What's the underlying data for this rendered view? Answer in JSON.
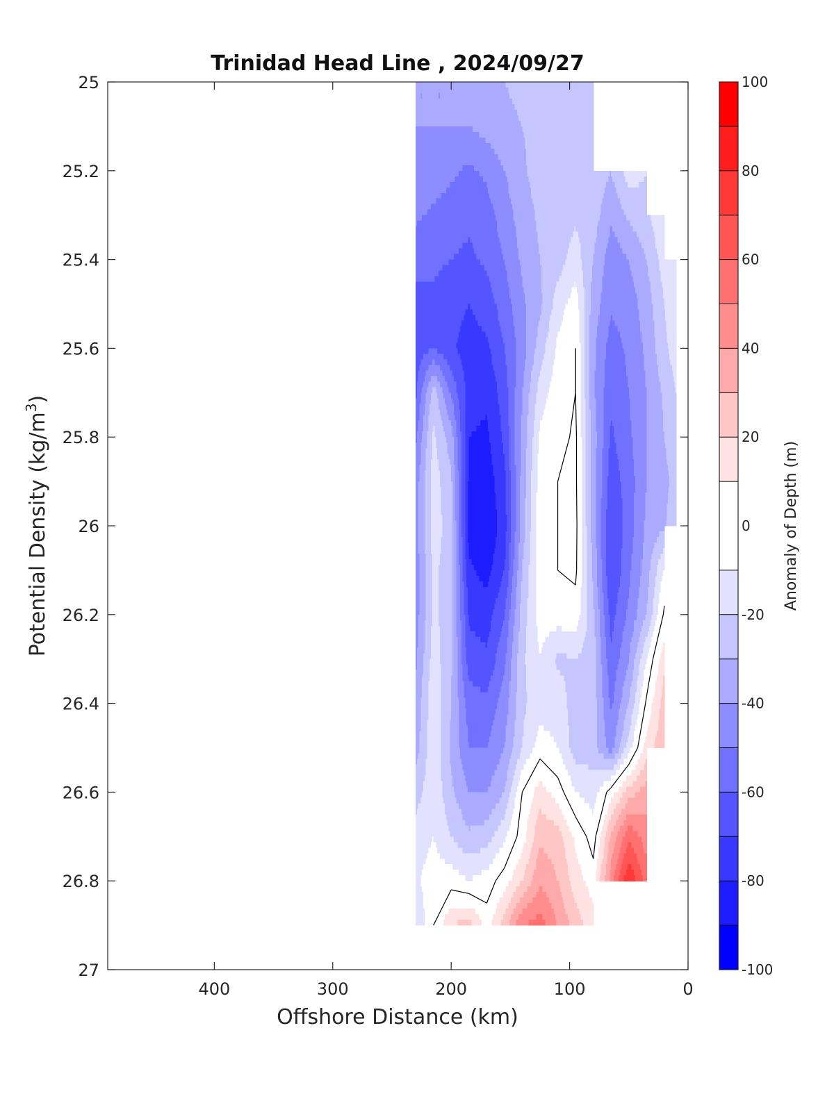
{
  "chart_data": {
    "type": "contour",
    "title": "Trinidad Head Line , 2024/09/27",
    "xlabel": "Offshore Distance (km)",
    "ylabel": "Potential Density (kg/m",
    "ylabel_superscript": "3",
    "ylabel_close": ")",
    "xlim": [
      490,
      0
    ],
    "ylim": [
      25,
      27
    ],
    "x_reversed": true,
    "y_reversed": true,
    "xticks": [
      400,
      300,
      200,
      100,
      0
    ],
    "yticks": [
      25,
      25.2,
      25.4,
      25.6,
      25.8,
      26,
      26.2,
      26.4,
      26.6,
      26.8,
      27
    ],
    "xtick_labels": [
      "400",
      "300",
      "200",
      "100",
      "0"
    ],
    "ytick_labels": [
      "25",
      "25.2",
      "25.4",
      "25.6",
      "25.8",
      "26",
      "26.2",
      "26.4",
      "26.6",
      "26.8",
      "27"
    ],
    "colorbar": {
      "label": "Anomaly of Depth (m)",
      "range": [
        -100,
        100
      ],
      "tick_values": [
        100,
        80,
        60,
        40,
        20,
        0,
        -20,
        -40,
        -60,
        -80,
        -100
      ],
      "tick_labels": [
        "100",
        "80",
        "60",
        "40",
        "20",
        "0",
        "-20",
        "-40",
        "-60",
        "-80",
        "-100"
      ],
      "levels": [
        -100,
        -90,
        -80,
        -70,
        -60,
        -50,
        -40,
        -30,
        -20,
        -10,
        10,
        20,
        30,
        40,
        50,
        60,
        70,
        80,
        90,
        100
      ],
      "colors_low_to_high": [
        "#0000ff",
        "#1c1cff",
        "#3838ff",
        "#5555ff",
        "#7171ff",
        "#8d8dff",
        "#aaaaff",
        "#c6c6ff",
        "#e2e2ff",
        "#ffffff",
        "#ffe2e2",
        "#ffc6c6",
        "#ffaaaa",
        "#ff8d8d",
        "#ff7171",
        "#ff5555",
        "#ff3838",
        "#ff1c1c",
        "#ff0000"
      ]
    },
    "grid": false,
    "distances_km": [
      230,
      215,
      200,
      185,
      170,
      155,
      140,
      125,
      110,
      95,
      80,
      65,
      50,
      35,
      20,
      10
    ],
    "densities": [
      25.0,
      25.1,
      25.2,
      25.3,
      25.4,
      25.5,
      25.6,
      25.7,
      25.8,
      25.9,
      26.0,
      26.1,
      26.2,
      26.3,
      26.4,
      26.5,
      26.6,
      26.7,
      26.8,
      26.9
    ],
    "anomaly_m": [
      [
        -40,
        -40,
        -40,
        -38,
        -35,
        -30,
        -28,
        -25,
        -25,
        -25,
        -25,
        null,
        null,
        null,
        null,
        null
      ],
      [
        -40,
        -40,
        -40,
        -40,
        -36,
        -32,
        -30,
        -25,
        -25,
        -25,
        -25,
        null,
        null,
        null,
        null,
        null
      ],
      [
        -42,
        -44,
        -48,
        -52,
        -48,
        -40,
        -32,
        -25,
        -25,
        -24,
        -22,
        -30,
        -15,
        -20,
        null,
        null
      ],
      [
        -48,
        -52,
        -55,
        -58,
        -54,
        -45,
        -35,
        -28,
        -25,
        -22,
        -25,
        -38,
        -28,
        -22,
        -10,
        null
      ],
      [
        -58,
        -58,
        -60,
        -62,
        -58,
        -50,
        -38,
        -30,
        -25,
        -15,
        -30,
        -46,
        -40,
        -30,
        -15,
        -14
      ],
      [
        -62,
        -62,
        -66,
        -70,
        -65,
        -55,
        -42,
        -32,
        -15,
        -5,
        -35,
        -48,
        -45,
        -35,
        -20,
        -14
      ],
      [
        -65,
        -60,
        -68,
        -75,
        -72,
        -60,
        -45,
        -25,
        -8,
        0,
        -38,
        -55,
        -48,
        -38,
        -22,
        -15
      ],
      [
        -62,
        -25,
        -52,
        -75,
        -78,
        -65,
        -40,
        -15,
        -4,
        0,
        -38,
        -58,
        -50,
        -40,
        -28,
        -20
      ],
      [
        -52,
        -18,
        -35,
        -80,
        -82,
        -68,
        -38,
        -8,
        -4,
        2,
        -35,
        -62,
        -52,
        -40,
        -30,
        -24
      ],
      [
        -45,
        -15,
        -28,
        -82,
        -86,
        -72,
        -36,
        -5,
        0,
        2,
        -35,
        -66,
        -55,
        -40,
        -32,
        -28
      ],
      [
        -45,
        -15,
        -25,
        -84,
        -88,
        -75,
        -35,
        -3,
        0,
        3,
        -35,
        -70,
        -55,
        -38,
        -32,
        -20
      ],
      [
        -45,
        -18,
        -25,
        -78,
        -84,
        -70,
        -30,
        -4,
        0,
        2,
        -32,
        -70,
        -52,
        -35,
        -8,
        null
      ],
      [
        -45,
        -18,
        -25,
        -72,
        -75,
        -60,
        -25,
        -6,
        -5,
        -4,
        -28,
        -64,
        -48,
        -30,
        2,
        null
      ],
      [
        -42,
        -15,
        -28,
        -65,
        -68,
        -52,
        -22,
        -10,
        -22,
        -20,
        -25,
        -58,
        -40,
        -10,
        18,
        null
      ],
      [
        -38,
        -12,
        -30,
        -55,
        -58,
        -45,
        -22,
        -15,
        -15,
        -25,
        -25,
        -52,
        -30,
        2,
        25,
        null
      ],
      [
        -35,
        -12,
        -32,
        -50,
        -50,
        -40,
        -20,
        -5,
        -10,
        -25,
        -25,
        -45,
        -15,
        15,
        28,
        null
      ],
      [
        -25,
        -12,
        -28,
        -40,
        -40,
        -30,
        0,
        15,
        5,
        -10,
        -15,
        5,
        25,
        35,
        null,
        null
      ],
      [
        -15,
        -10,
        -20,
        -28,
        -25,
        -12,
        5,
        28,
        25,
        8,
        -5,
        32,
        58,
        45,
        null,
        null
      ],
      [
        -12,
        -5,
        -5,
        -10,
        -5,
        5,
        20,
        38,
        30,
        15,
        5,
        45,
        80,
        55,
        null,
        null
      ],
      [
        -20,
        0,
        20,
        25,
        5,
        25,
        50,
        55,
        40,
        25,
        15,
        null,
        null,
        null,
        null,
        null
      ]
    ]
  }
}
